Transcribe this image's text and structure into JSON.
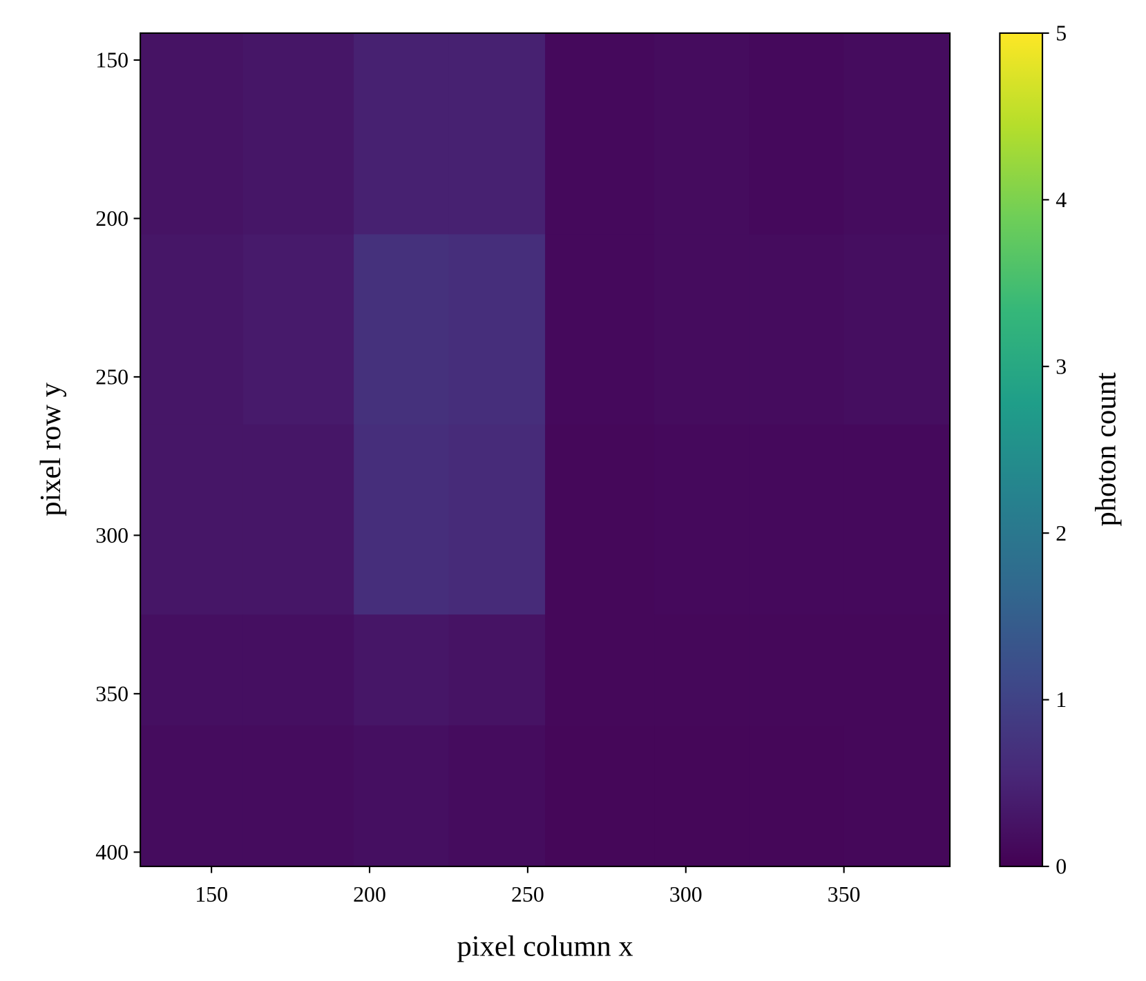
{
  "chart_data": {
    "type": "heatmap",
    "xlabel": "pixel column x",
    "ylabel": "pixel row y",
    "colorbar_label": "photon count",
    "xbins": [
      127.5,
      160,
      195,
      225,
      255.5,
      290,
      320,
      350,
      383.5
    ],
    "ybins": [
      141.5,
      205,
      265,
      325,
      360,
      404.5
    ],
    "values": [
      [
        0.25,
        0.3,
        0.45,
        0.45,
        0.12,
        0.15,
        0.12,
        0.15
      ],
      [
        0.3,
        0.35,
        0.7,
        0.65,
        0.12,
        0.15,
        0.15,
        0.18
      ],
      [
        0.3,
        0.3,
        0.65,
        0.6,
        0.1,
        0.12,
        0.12,
        0.12
      ],
      [
        0.2,
        0.2,
        0.3,
        0.25,
        0.1,
        0.1,
        0.1,
        0.1
      ],
      [
        0.15,
        0.15,
        0.2,
        0.15,
        0.08,
        0.08,
        0.08,
        0.1
      ]
    ],
    "xlim": [
      127.5,
      383.5
    ],
    "ylim": [
      404.5,
      141.5
    ],
    "xticks": [
      150,
      200,
      250,
      300,
      350
    ],
    "yticks": [
      150,
      200,
      250,
      300,
      350,
      400
    ],
    "clim": [
      0,
      5
    ],
    "cticks": [
      0,
      1,
      2,
      3,
      4,
      5
    ],
    "colormap": [
      "#440154",
      "#482878",
      "#3e4989",
      "#31688e",
      "#26828e",
      "#1f9e89",
      "#35b779",
      "#6ece58",
      "#b5de2b",
      "#fde725"
    ]
  }
}
